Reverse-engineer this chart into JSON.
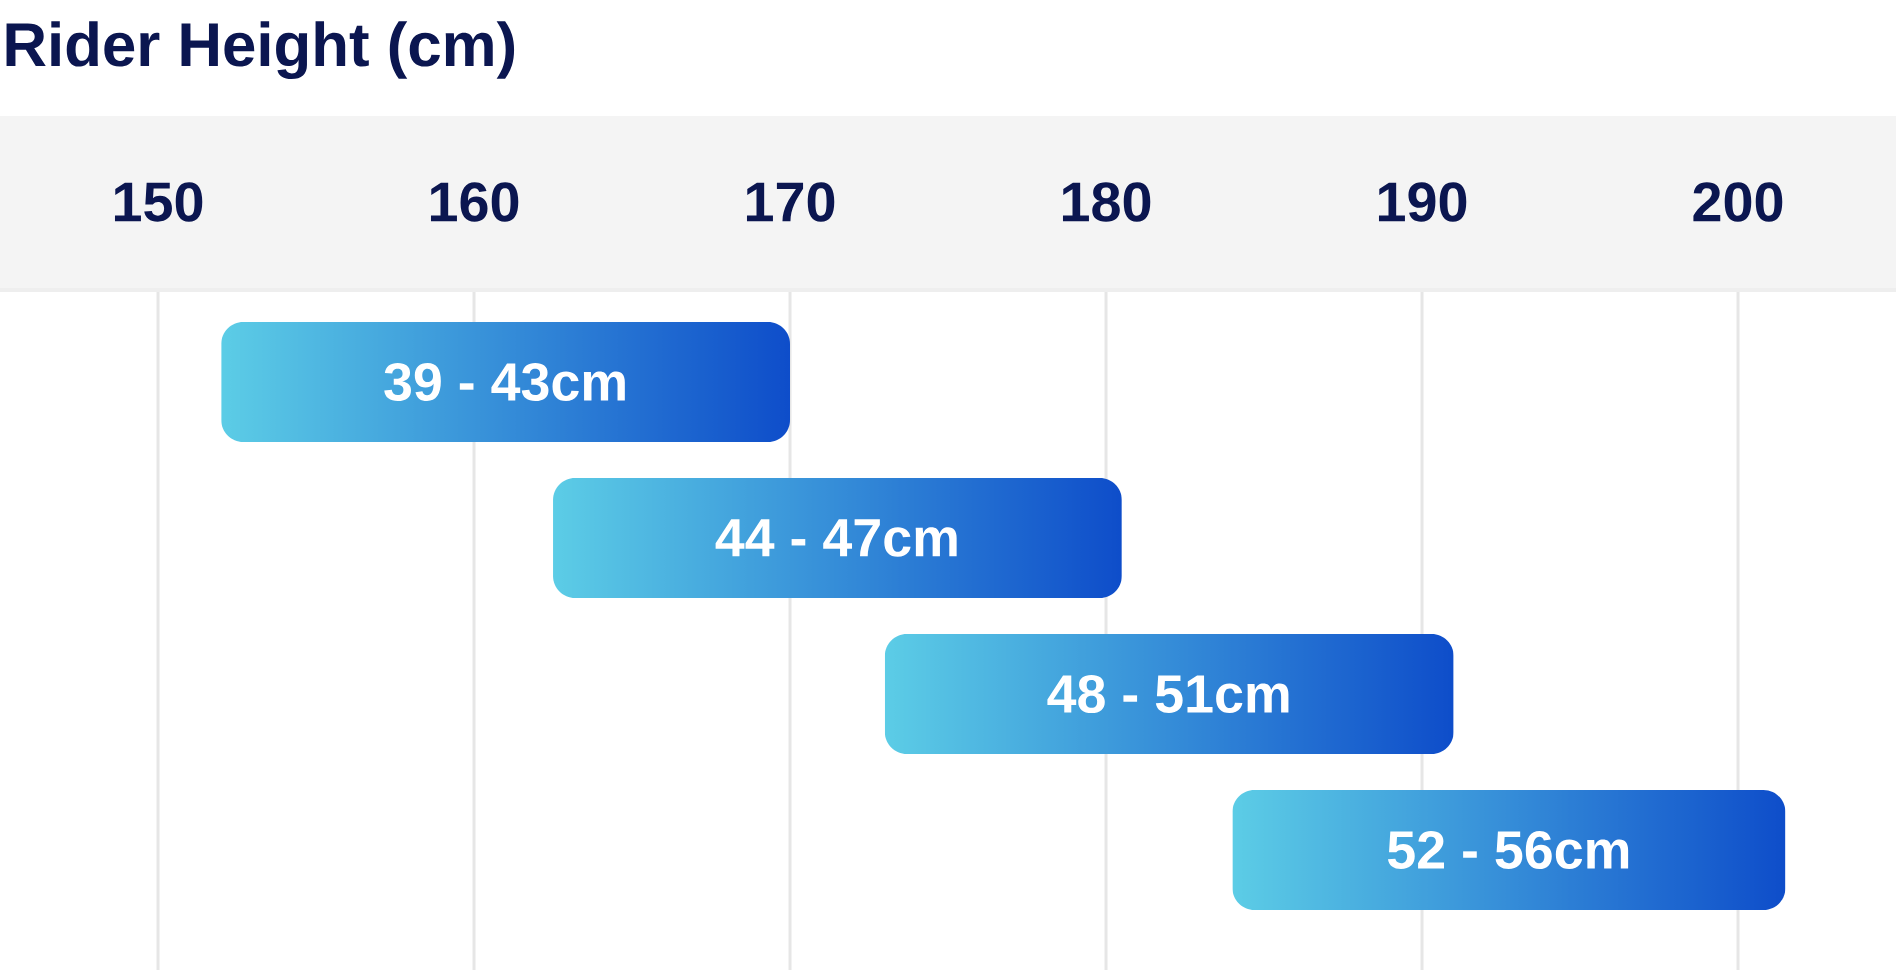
{
  "chart_data": {
    "type": "bar",
    "orientation": "horizontal",
    "xlabel": "Rider Height (cm)",
    "categories": [
      "39 - 43cm",
      "44 - 47cm",
      "48 - 51cm",
      "52 - 56cm"
    ],
    "base": [
      152,
      162.5,
      173,
      184
    ],
    "values": [
      18,
      18,
      18,
      17.5
    ],
    "color": "#358dd8",
    "xlim": [
      145,
      205
    ],
    "xticks": [
      150,
      160,
      170,
      180,
      190,
      200
    ],
    "grid": "x"
  }
}
